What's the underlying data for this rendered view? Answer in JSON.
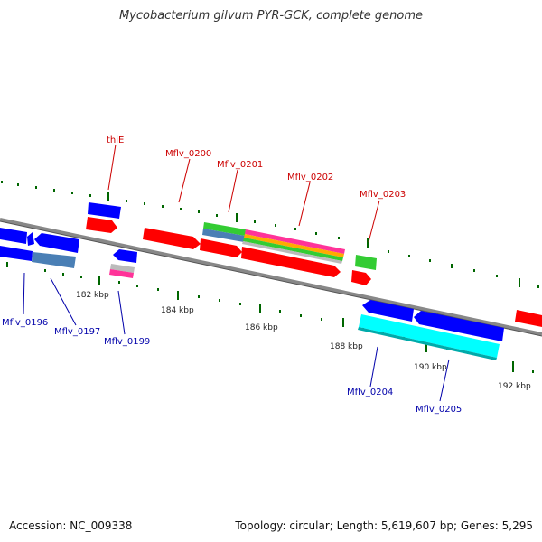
{
  "title": "Mycobacterium gilvum PYR-GCK, complete genome",
  "footer": {
    "accession": "Accession: NC_009338",
    "summary": "Topology: circular; Length: 5,619,607 bp; Genes: 5,295"
  },
  "colors": {
    "backbone": "#888888",
    "forward_gene": "#ff0000",
    "reverse_gene": "#0000ff",
    "tick": "#006600",
    "top_label": "#cc0000",
    "bottom_label": "#0000aa",
    "cds_cyan": "#00ffff",
    "cds_steel": "#4a7fb5",
    "cds_green": "#33cc33",
    "cds_magenta": "#ff3399",
    "cds_orange": "#ffaa00",
    "cds_silver": "#bbbbbb"
  },
  "kbp_labels": [
    "182 kbp",
    "184 kbp",
    "186 kbp",
    "188 kbp",
    "190 kbp",
    "192 kbp"
  ],
  "top_genes": [
    "thiE",
    "Mflv_0200",
    "Mflv_0201",
    "Mflv_0202",
    "Mflv_0203"
  ],
  "bottom_genes": [
    "Mflv_0196",
    "Mflv_0197",
    "Mflv_0199",
    "Mflv_0204",
    "Mflv_0205"
  ]
}
